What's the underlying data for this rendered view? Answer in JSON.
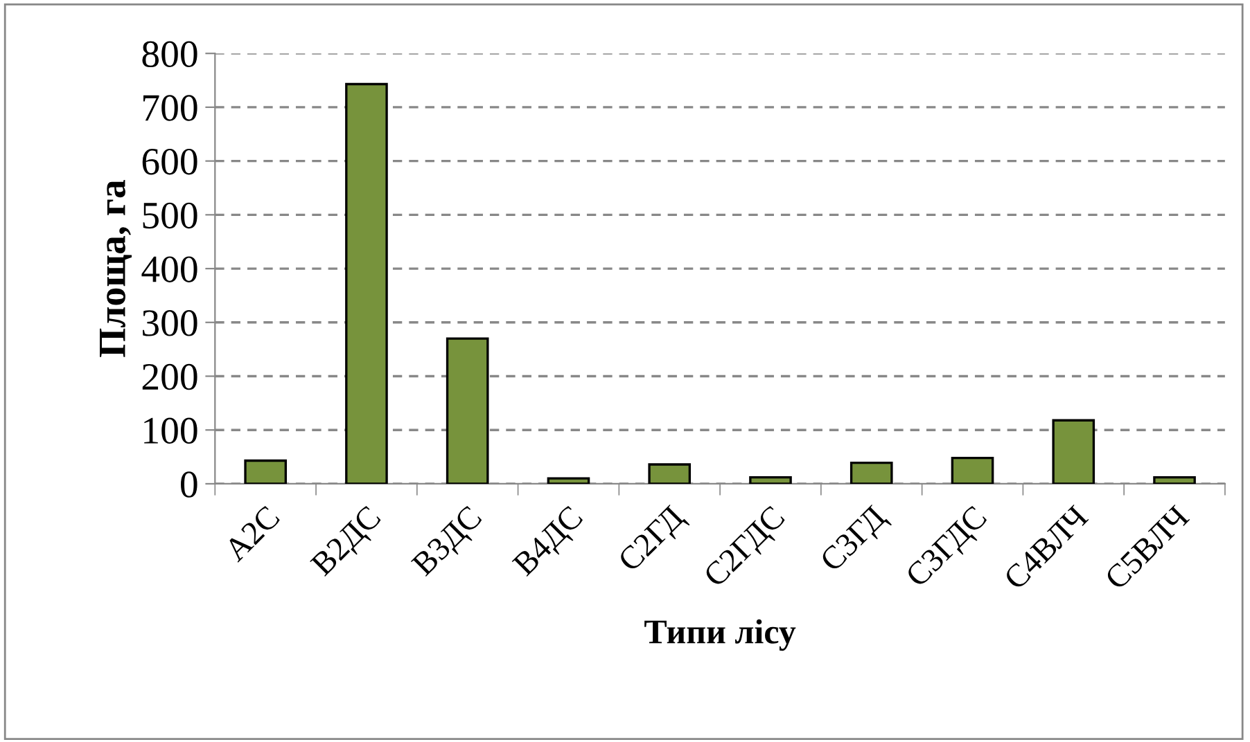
{
  "chart_data": {
    "type": "bar",
    "xlabel": "Типи лісу",
    "ylabel": "Площа, га",
    "categories": [
      "А2С",
      "В2ДС",
      "В3ДС",
      "В4ДС",
      "С2ГД",
      "С2ГДС",
      "С3ГД",
      "С3ГДС",
      "С4ВЛЧ",
      "С5ВЛЧ"
    ],
    "values": [
      43,
      743,
      270,
      10,
      36,
      12,
      39,
      48,
      118,
      12
    ],
    "color": "#77933c",
    "ylim": [
      0,
      800
    ],
    "yticks": [
      0,
      100,
      200,
      300,
      400,
      500,
      600,
      700,
      800
    ],
    "grid": "y"
  }
}
